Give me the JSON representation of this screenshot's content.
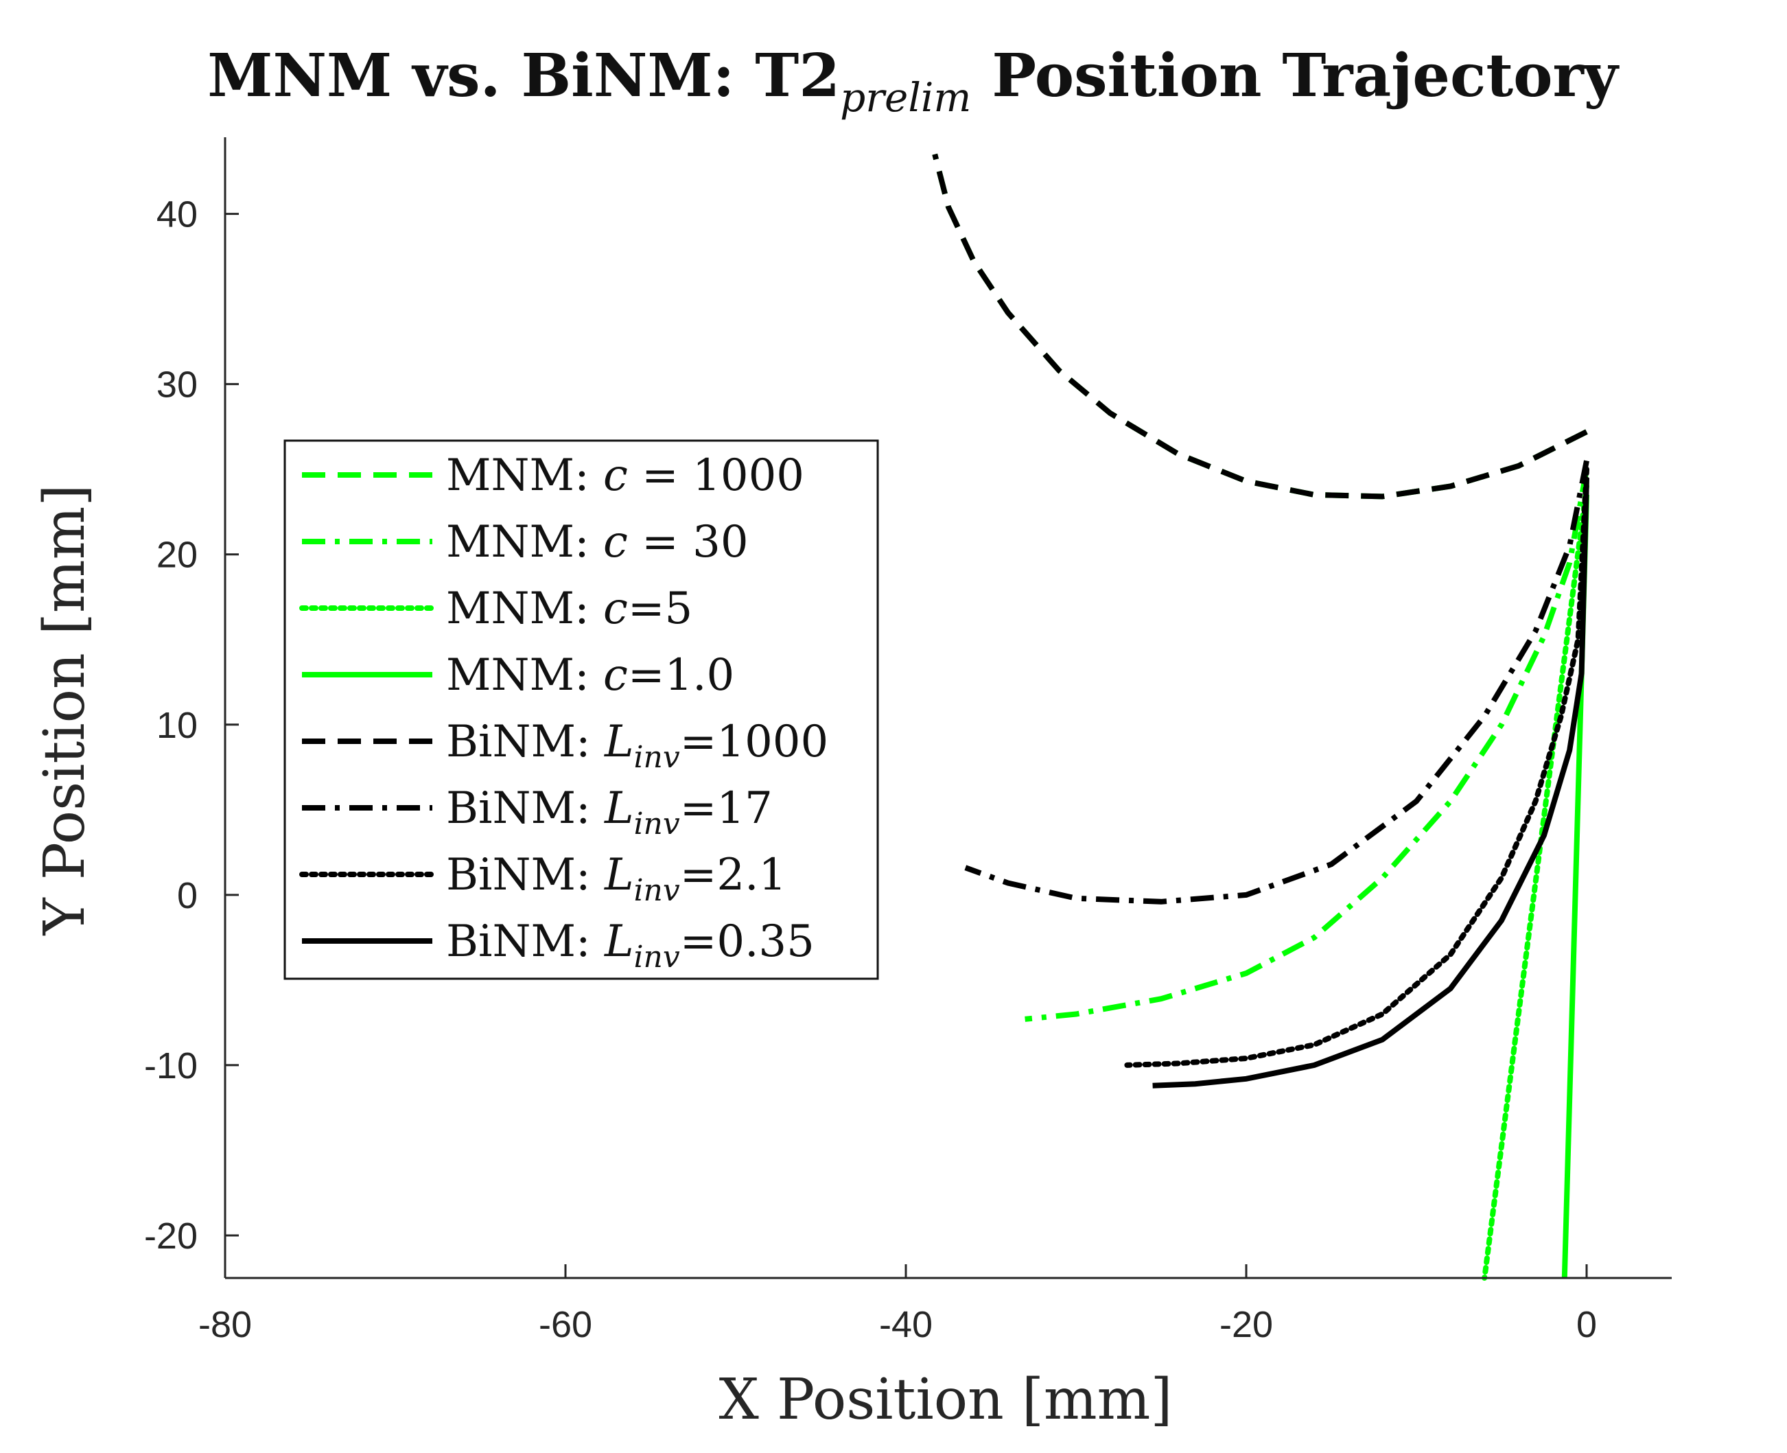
{
  "chart_data": {
    "type": "line",
    "title": {
      "main": "MNM vs. BiNM: T2",
      "subscript": "prelim",
      "suffix": " Position Trajectory"
    },
    "xlabel": "X Position [mm]",
    "ylabel": "Y Position [mm]",
    "xlim": [
      -80,
      5
    ],
    "ylim": [
      -22.5,
      44.5
    ],
    "xticks": [
      -80,
      -60,
      -40,
      -20,
      0
    ],
    "yticks": [
      -20,
      -10,
      0,
      10,
      20,
      30,
      40
    ],
    "legend_position": "upper-left",
    "colors": {
      "green": "#00ff00",
      "black": "#000000",
      "axis": "#262626"
    },
    "series": [
      {
        "name": "MNM: c = 1000",
        "legend": {
          "prefix": "MNM: ",
          "var": "c",
          "sub": "",
          "suffix": " = 1000"
        },
        "color": "#00ff00",
        "style": "dashed",
        "points": [
          [
            0,
            27.2
          ],
          [
            -4,
            25.2
          ],
          [
            -8,
            24
          ],
          [
            -12,
            23.4
          ],
          [
            -16,
            23.5
          ],
          [
            -20,
            24.3
          ],
          [
            -24,
            25.9
          ],
          [
            -28,
            28.3
          ],
          [
            -31,
            30.8
          ],
          [
            -34,
            34.2
          ],
          [
            -36,
            37.2
          ],
          [
            -37.5,
            40.4
          ],
          [
            -38.3,
            43.5
          ]
        ]
      },
      {
        "name": "MNM: c = 30",
        "legend": {
          "prefix": "MNM: ",
          "var": "c",
          "sub": "",
          "suffix": " = 30"
        },
        "color": "#00ff00",
        "style": "dashdot",
        "points": [
          [
            0,
            25
          ],
          [
            -1,
            19.5
          ],
          [
            -2.5,
            15.2
          ],
          [
            -5,
            10
          ],
          [
            -8,
            5.5
          ],
          [
            -12,
            1
          ],
          [
            -16,
            -2.5
          ],
          [
            -20,
            -4.6
          ],
          [
            -25,
            -6.1
          ],
          [
            -30,
            -7
          ],
          [
            -33,
            -7.3
          ]
        ]
      },
      {
        "name": "MNM: c=5",
        "legend": {
          "prefix": "MNM: ",
          "var": "c",
          "sub": "",
          "suffix": "=5"
        },
        "color": "#00ff00",
        "style": "dotted",
        "points": [
          [
            0,
            24
          ],
          [
            -6,
            -22.5
          ]
        ]
      },
      {
        "name": "MNM: c=1.0",
        "legend": {
          "prefix": "MNM: ",
          "var": "c",
          "sub": "",
          "suffix": "=1.0"
        },
        "color": "#00ff00",
        "style": "solid",
        "points": [
          [
            0,
            23.5
          ],
          [
            -1.3,
            -22.5
          ]
        ]
      },
      {
        "name": "BiNM: L_inv=1000",
        "legend": {
          "prefix": "BiNM: ",
          "var": "L",
          "sub": "inv",
          "suffix": "=1000"
        },
        "color": "#000000",
        "style": "dashed",
        "points": [
          [
            0,
            27.2
          ],
          [
            -4,
            25.2
          ],
          [
            -8,
            24
          ],
          [
            -12,
            23.4
          ],
          [
            -16,
            23.5
          ],
          [
            -20,
            24.3
          ],
          [
            -24,
            25.9
          ],
          [
            -28,
            28.3
          ],
          [
            -31,
            30.8
          ],
          [
            -34,
            34.2
          ],
          [
            -36,
            37.2
          ],
          [
            -37.5,
            40.4
          ],
          [
            -38.3,
            43.5
          ]
        ]
      },
      {
        "name": "BiNM: L_inv=17",
        "legend": {
          "prefix": "BiNM: ",
          "var": "L",
          "sub": "inv",
          "suffix": "=17"
        },
        "color": "#000000",
        "style": "dashdot",
        "points": [
          [
            0,
            25.5
          ],
          [
            -1,
            20.5
          ],
          [
            -3,
            15.5
          ],
          [
            -6,
            10.5
          ],
          [
            -10,
            5.5
          ],
          [
            -15,
            1.8
          ],
          [
            -20,
            0
          ],
          [
            -25,
            -0.4
          ],
          [
            -30,
            -0.2
          ],
          [
            -34,
            0.7
          ],
          [
            -36.5,
            1.6
          ]
        ]
      },
      {
        "name": "BiNM: L_inv=2.1",
        "legend": {
          "prefix": "BiNM: ",
          "var": "L",
          "sub": "inv",
          "suffix": "=2.1"
        },
        "color": "#000000",
        "style": "dotted",
        "points": [
          [
            0,
            25
          ],
          [
            -0.5,
            15
          ],
          [
            -1.5,
            10.5
          ],
          [
            -3,
            5.5
          ],
          [
            -5,
            1
          ],
          [
            -8,
            -3.5
          ],
          [
            -12,
            -7
          ],
          [
            -16,
            -8.8
          ],
          [
            -20,
            -9.6
          ],
          [
            -24,
            -9.9
          ],
          [
            -27,
            -10
          ]
        ]
      },
      {
        "name": "BiNM: L_inv=0.35",
        "legend": {
          "prefix": "BiNM: ",
          "var": "L",
          "sub": "inv",
          "suffix": "=0.35"
        },
        "color": "#000000",
        "style": "solid",
        "points": [
          [
            0,
            24.5
          ],
          [
            -0.3,
            13
          ],
          [
            -1,
            8.5
          ],
          [
            -2.5,
            3.5
          ],
          [
            -5,
            -1.5
          ],
          [
            -8,
            -5.5
          ],
          [
            -12,
            -8.5
          ],
          [
            -16,
            -10
          ],
          [
            -20,
            -10.8
          ],
          [
            -23,
            -11.1
          ],
          [
            -25.5,
            -11.2
          ]
        ]
      }
    ]
  }
}
